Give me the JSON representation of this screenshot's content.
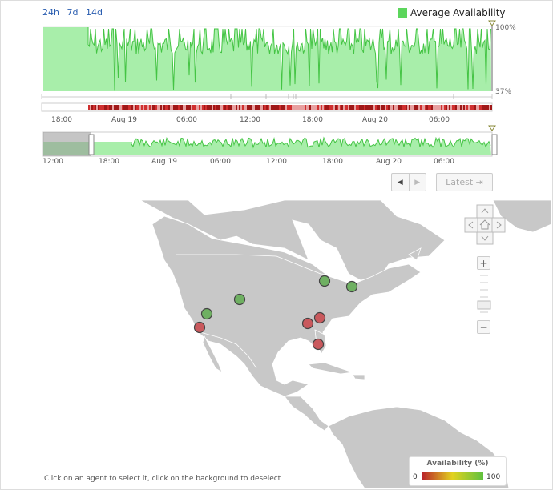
{
  "range_links": [
    "24h",
    "7d",
    "14d"
  ],
  "legend": {
    "label": "Average Availability",
    "color": "#5cd65c"
  },
  "main_chart": {
    "y_top_label": "100%",
    "y_bottom_label": "37%",
    "x_labels": [
      "18:00",
      "Aug 19",
      "06:00",
      "12:00",
      "18:00",
      "Aug 20",
      "06:00"
    ],
    "fill_color": "#a8eeaa",
    "line_color": "#44c444"
  },
  "navigator": {
    "x_labels": [
      "12:00",
      "18:00",
      "Aug 19",
      "06:00",
      "12:00",
      "18:00",
      "Aug 20",
      "06:00"
    ]
  },
  "nav_buttons": {
    "prev_icon": "◀",
    "next_icon": "▶",
    "latest_label": "Latest ⇥"
  },
  "map": {
    "land_color": "#c8c8c8",
    "border_color": "#ffffff",
    "agents": [
      {
        "status": "ok",
        "color": "#6fb062"
      },
      {
        "status": "ok",
        "color": "#6fb062"
      },
      {
        "status": "ok",
        "color": "#6fb062"
      },
      {
        "status": "ok",
        "color": "#6fb062"
      },
      {
        "status": "down",
        "color": "#c9595d"
      },
      {
        "status": "down",
        "color": "#c9595d"
      },
      {
        "status": "down",
        "color": "#c9595d"
      },
      {
        "status": "down",
        "color": "#c9595d"
      }
    ]
  },
  "map_controls": {
    "zoom_in": "+",
    "zoom_out": "−"
  },
  "hint": "Click on an agent to select it, click on the background to deselect",
  "availability_legend": {
    "title": "Availability (%)",
    "min": "0",
    "max": "100"
  }
}
